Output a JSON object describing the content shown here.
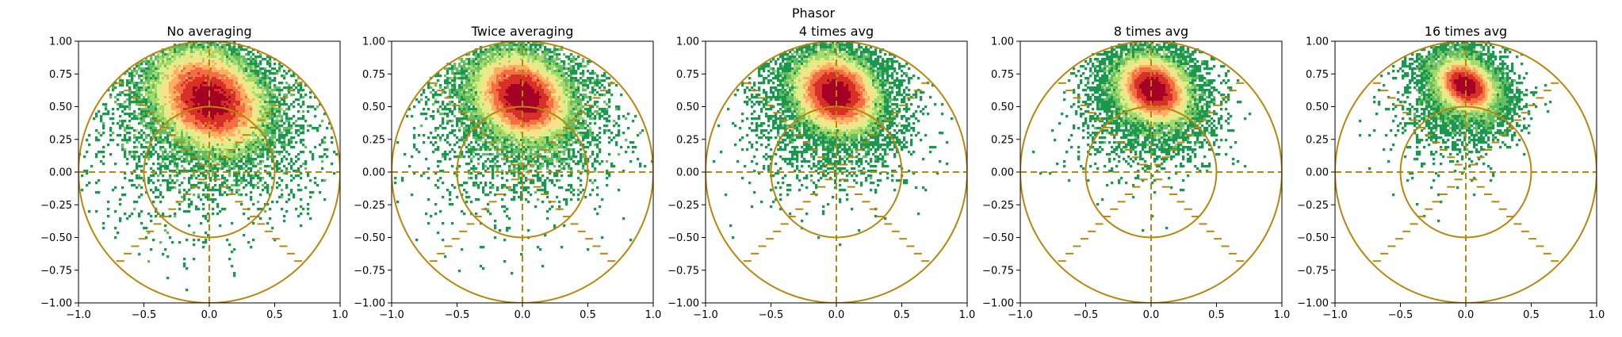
{
  "figure": {
    "suptitle": "Phasor",
    "accent_color": "#b8860b",
    "colormap": [
      "#006837",
      "#1a9850",
      "#66bd63",
      "#a6d96a",
      "#d9ef8b",
      "#fee08b",
      "#fdae61",
      "#f46d43",
      "#d73027",
      "#a50026"
    ]
  },
  "chart_data": [
    {
      "type": "heatmap",
      "title": "No averaging",
      "xlim": [
        -1.0,
        1.0
      ],
      "ylim": [
        -1.0,
        1.0
      ],
      "xticks": [
        -1.0,
        -0.5,
        0.0,
        0.5,
        1.0
      ],
      "xtick_labels": [
        "−1.0",
        "−0.5",
        "0.0",
        "0.5",
        "1.0"
      ],
      "yticks": [
        1.0,
        0.75,
        0.5,
        0.25,
        0.0,
        -0.25,
        -0.5,
        -0.75,
        -1.0
      ],
      "ytick_labels": [
        "1.00",
        "0.75",
        "0.50",
        "0.25",
        "0.00",
        "−0.25",
        "−0.50",
        "−0.75",
        "−1.00"
      ],
      "grid": false,
      "cluster": {
        "center": [
          0.0,
          0.55
        ],
        "sigma": [
          0.17,
          0.13
        ],
        "rotation_deg": -35,
        "peak_color": "#d7191c"
      },
      "overlay": {
        "outer_circle_radius": 1.0,
        "inner_circle_radius": 0.5,
        "dashed_axes": true,
        "dashed_diagonals": true
      }
    },
    {
      "type": "heatmap",
      "title": "Twice averaging",
      "xlim": [
        -1.0,
        1.0
      ],
      "ylim": [
        -1.0,
        1.0
      ],
      "xticks": [
        -1.0,
        -0.5,
        0.0,
        0.5,
        1.0
      ],
      "xtick_labels": [
        "−1.0",
        "−0.5",
        "0.0",
        "0.5",
        "1.0"
      ],
      "yticks": [
        1.0,
        0.75,
        0.5,
        0.25,
        0.0,
        -0.25,
        -0.5,
        -0.75,
        -1.0
      ],
      "ytick_labels": [
        "1.00",
        "0.75",
        "0.50",
        "0.25",
        "0.00",
        "−0.25",
        "−0.50",
        "−0.75",
        "−1.00"
      ],
      "grid": false,
      "cluster": {
        "center": [
          0.0,
          0.57
        ],
        "sigma": [
          0.14,
          0.11
        ],
        "rotation_deg": -35,
        "peak_color": "#d7191c"
      },
      "overlay": {
        "outer_circle_radius": 1.0,
        "inner_circle_radius": 0.5,
        "dashed_axes": true,
        "dashed_diagonals": true
      }
    },
    {
      "type": "heatmap",
      "title": "4 times avg",
      "xlim": [
        -1.0,
        1.0
      ],
      "ylim": [
        -1.0,
        1.0
      ],
      "xticks": [
        -1.0,
        -0.5,
        0.0,
        0.5,
        1.0
      ],
      "xtick_labels": [
        "−1.0",
        "−0.5",
        "0.0",
        "0.5",
        "1.0"
      ],
      "yticks": [
        1.0,
        0.75,
        0.5,
        0.25,
        0.0,
        -0.25,
        -0.5,
        -0.75,
        -1.0
      ],
      "ytick_labels": [
        "1.00",
        "0.75",
        "0.50",
        "0.25",
        "0.00",
        "−0.25",
        "−0.50",
        "−0.75",
        "−1.00"
      ],
      "grid": false,
      "cluster": {
        "center": [
          0.0,
          0.6
        ],
        "sigma": [
          0.12,
          0.1
        ],
        "rotation_deg": -35,
        "peak_color": "#d7191c"
      },
      "overlay": {
        "outer_circle_radius": 1.0,
        "inner_circle_radius": 0.5,
        "dashed_axes": true,
        "dashed_diagonals": true
      }
    },
    {
      "type": "heatmap",
      "title": "8 times avg",
      "xlim": [
        -1.0,
        1.0
      ],
      "ylim": [
        -1.0,
        1.0
      ],
      "xticks": [
        -1.0,
        -0.5,
        0.0,
        0.5,
        1.0
      ],
      "xtick_labels": [
        "−1.0",
        "−0.5",
        "0.0",
        "0.5",
        "1.0"
      ],
      "yticks": [
        1.0,
        0.75,
        0.5,
        0.25,
        0.0,
        -0.25,
        -0.5,
        -0.75,
        -1.0
      ],
      "ytick_labels": [
        "1.00",
        "0.75",
        "0.50",
        "0.25",
        "0.00",
        "−0.25",
        "−0.50",
        "−0.75",
        "−1.00"
      ],
      "grid": false,
      "cluster": {
        "center": [
          0.02,
          0.63
        ],
        "sigma": [
          0.1,
          0.08
        ],
        "rotation_deg": -35,
        "peak_color": "#d7191c"
      },
      "overlay": {
        "outer_circle_radius": 1.0,
        "inner_circle_radius": 0.5,
        "dashed_axes": true,
        "dashed_diagonals": true
      }
    },
    {
      "type": "heatmap",
      "title": "16 times avg",
      "xlim": [
        -1.0,
        1.0
      ],
      "ylim": [
        -1.0,
        1.0
      ],
      "xticks": [
        -1.0,
        -0.5,
        0.0,
        0.5,
        1.0
      ],
      "xtick_labels": [
        "−1.0",
        "−0.5",
        "0.0",
        "0.5",
        "1.0"
      ],
      "yticks": [
        1.0,
        0.75,
        0.5,
        0.25,
        0.0,
        -0.25,
        -0.5,
        -0.75,
        -1.0
      ],
      "ytick_labels": [
        "1.00",
        "0.75",
        "0.50",
        "0.25",
        "0.00",
        "−0.25",
        "−0.50",
        "−0.75",
        "−1.00"
      ],
      "grid": false,
      "cluster": {
        "center": [
          0.0,
          0.66
        ],
        "sigma": [
          0.08,
          0.06
        ],
        "rotation_deg": -35,
        "peak_color": "#d7191c"
      },
      "overlay": {
        "outer_circle_radius": 1.0,
        "inner_circle_radius": 0.5,
        "dashed_axes": true,
        "dashed_diagonals": true
      }
    }
  ]
}
